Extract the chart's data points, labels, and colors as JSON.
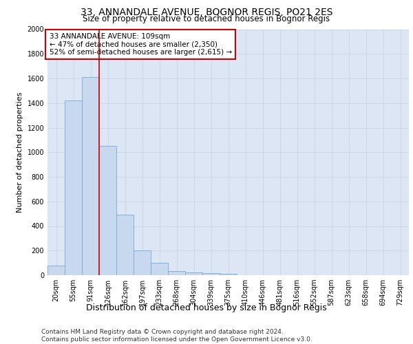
{
  "title": "33, ANNANDALE AVENUE, BOGNOR REGIS, PO21 2ES",
  "subtitle": "Size of property relative to detached houses in Bognor Regis",
  "xlabel": "Distribution of detached houses by size in Bognor Regis",
  "ylabel": "Number of detached properties",
  "bar_values": [
    80,
    1420,
    1610,
    1050,
    490,
    200,
    100,
    35,
    25,
    15,
    10,
    0,
    0,
    0,
    0,
    0,
    0,
    0,
    0,
    0,
    0
  ],
  "categories": [
    "20sqm",
    "55sqm",
    "91sqm",
    "126sqm",
    "162sqm",
    "197sqm",
    "233sqm",
    "268sqm",
    "304sqm",
    "339sqm",
    "375sqm",
    "410sqm",
    "446sqm",
    "481sqm",
    "516sqm",
    "552sqm",
    "587sqm",
    "623sqm",
    "658sqm",
    "694sqm",
    "729sqm"
  ],
  "bar_color": "#c8d8ee",
  "bar_edge_color": "#7aaad0",
  "vline_color": "#cc0000",
  "vline_pos": 2.5,
  "annotation_title": "33 ANNANDALE AVENUE: 109sqm",
  "annotation_line1": "← 47% of detached houses are smaller (2,350)",
  "annotation_line2": "52% of semi-detached houses are larger (2,615) →",
  "annotation_box_color": "#cc0000",
  "ylim": [
    0,
    2000
  ],
  "yticks": [
    0,
    200,
    400,
    600,
    800,
    1000,
    1200,
    1400,
    1600,
    1800,
    2000
  ],
  "grid_color": "#c8d4e8",
  "bg_color": "#dde6f5",
  "footer_line1": "Contains HM Land Registry data © Crown copyright and database right 2024.",
  "footer_line2": "Contains public sector information licensed under the Open Government Licence v3.0.",
  "title_fontsize": 10,
  "subtitle_fontsize": 8.5,
  "xlabel_fontsize": 9,
  "ylabel_fontsize": 8,
  "tick_fontsize": 7,
  "annot_fontsize": 7.5,
  "footer_fontsize": 6.5
}
